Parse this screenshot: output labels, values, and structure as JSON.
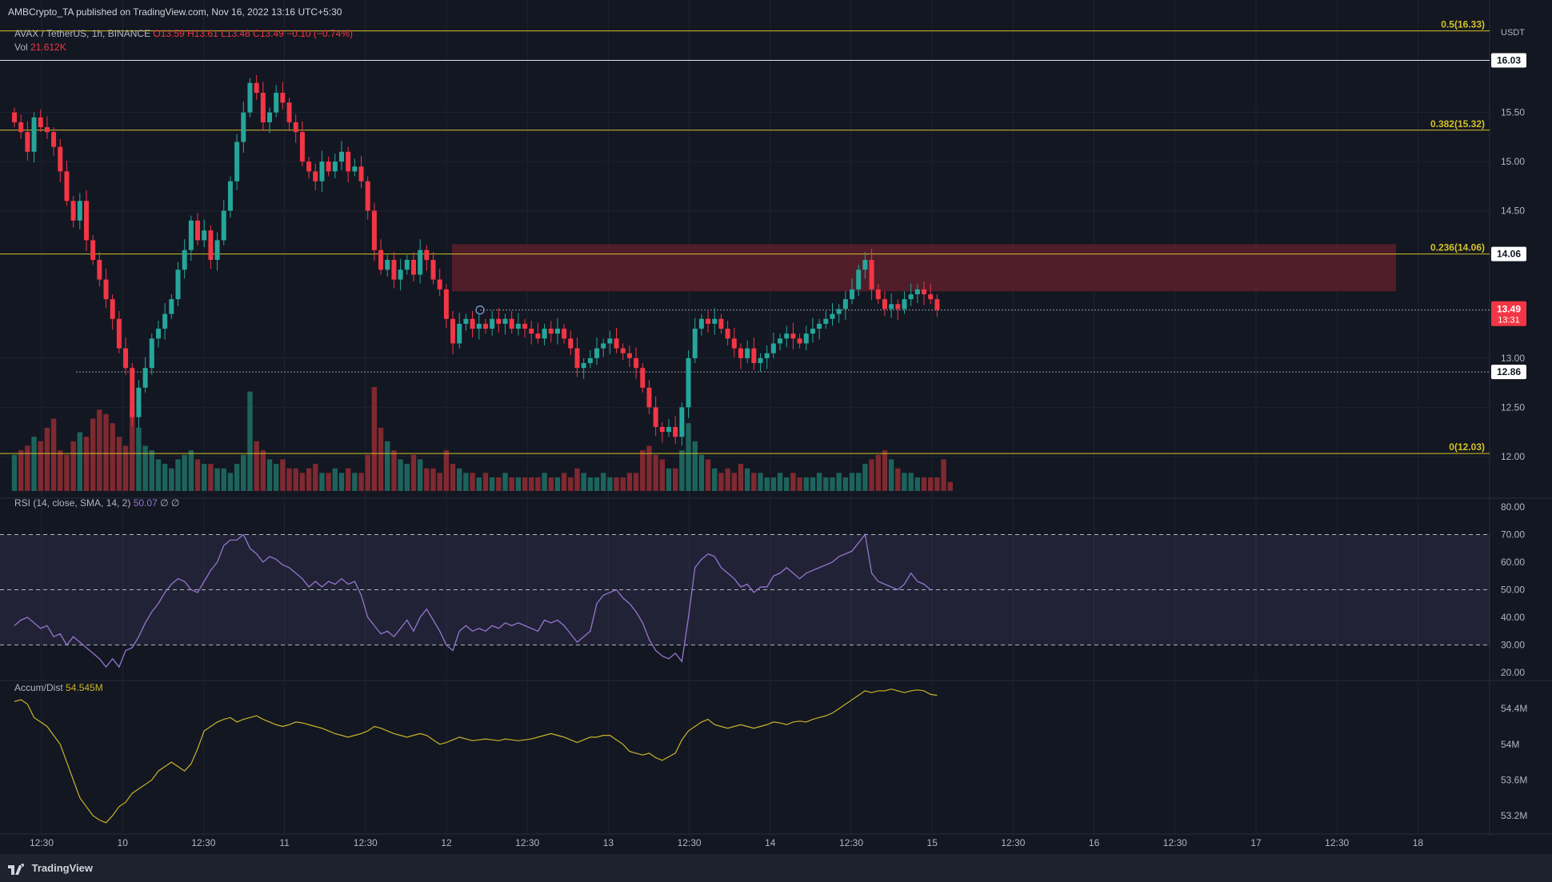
{
  "publisher": "AMBCrypto_TA published on TradingView.com, Nov 16, 2022 13:16 UTC+5:30",
  "symbol": {
    "name": "AVAX / TetherUS, 1h, BINANCE",
    "ohlc": "O13.59 H13.61 L13.48 C13.49 −0.10 (−0.74%)"
  },
  "volume": {
    "label": "Vol",
    "value": "21.612K"
  },
  "rsi": {
    "label": "RSI (14, close, SMA, 14, 2)",
    "value": "50.07",
    "extra": "∅ ∅"
  },
  "accum_dist": {
    "label": "Accum/Dist",
    "value": "54.545M"
  },
  "footer": {
    "brand": "TradingView"
  },
  "colors": {
    "background": "#131722",
    "up": "#26a69a",
    "down": "#f23645",
    "fib": "#d4c22a",
    "resistance_zone": "#5c1e2a",
    "rsi": "#9575cd",
    "ad": "#c9b32a"
  },
  "chart_data": [
    {
      "type": "candlestick",
      "title": "AVAX / TetherUS, 1h, BINANCE",
      "currency": "USDT",
      "y_ticks": [
        "15.50",
        "15.00",
        "14.50",
        "13.00",
        "12.50",
        "12.00"
      ],
      "ylim": [
        11.6,
        16.4
      ],
      "x_ticks": [
        "12:30",
        "10",
        "12:30",
        "11",
        "12:30",
        "12",
        "12:30",
        "13",
        "12:30",
        "14",
        "12:30",
        "15",
        "12:30",
        "16",
        "12:30",
        "17",
        "12:30",
        "18"
      ],
      "price_labels": [
        {
          "value": "16.03",
          "style": "white"
        },
        {
          "value": "14.06",
          "style": "white"
        },
        {
          "value": "13.49",
          "sub": "13:31",
          "style": "red"
        },
        {
          "value": "12.86",
          "style": "white"
        }
      ],
      "fib_levels": [
        {
          "label": "0.5(16.33)",
          "price": 16.33
        },
        {
          "label": "0.382(15.32)",
          "price": 15.32
        },
        {
          "label": "0.236(14.06)",
          "price": 14.06
        },
        {
          "label": "0(12.03)",
          "price": 12.03
        }
      ],
      "horizontal_lines": [
        16.03,
        13.49,
        12.86
      ],
      "resistance_zone": [
        13.68,
        14.16
      ],
      "closes": [
        15.4,
        15.3,
        15.1,
        15.45,
        15.35,
        15.3,
        15.15,
        14.9,
        14.6,
        14.4,
        14.6,
        14.2,
        14.0,
        13.8,
        13.6,
        13.4,
        13.1,
        12.9,
        12.4,
        12.7,
        12.9,
        13.2,
        13.3,
        13.45,
        13.6,
        13.9,
        14.1,
        14.4,
        14.2,
        14.3,
        14.0,
        14.2,
        14.5,
        14.8,
        15.2,
        15.5,
        15.8,
        15.7,
        15.4,
        15.5,
        15.7,
        15.6,
        15.4,
        15.3,
        15.0,
        14.9,
        14.8,
        15.0,
        14.9,
        15.0,
        15.1,
        14.9,
        14.95,
        14.8,
        14.5,
        14.1,
        13.9,
        14.0,
        13.8,
        13.9,
        14.0,
        13.85,
        14.1,
        14.0,
        13.8,
        13.7,
        13.4,
        13.15,
        13.35,
        13.4,
        13.3,
        13.35,
        13.3,
        13.4,
        13.35,
        13.4,
        13.3,
        13.35,
        13.3,
        13.25,
        13.2,
        13.3,
        13.25,
        13.3,
        13.2,
        13.1,
        12.9,
        12.95,
        13.0,
        13.1,
        13.15,
        13.2,
        13.1,
        13.05,
        13.0,
        12.9,
        12.7,
        12.5,
        12.3,
        12.25,
        12.3,
        12.2,
        12.5,
        13.0,
        13.3,
        13.4,
        13.35,
        13.4,
        13.3,
        13.2,
        13.1,
        13.0,
        13.1,
        12.95,
        13.0,
        13.05,
        13.15,
        13.2,
        13.25,
        13.2,
        13.15,
        13.25,
        13.3,
        13.35,
        13.4,
        13.45,
        13.5,
        13.6,
        13.7,
        13.9,
        14.0,
        13.7,
        13.6,
        13.5,
        13.55,
        13.5,
        13.6,
        13.65,
        13.7,
        13.65,
        13.6,
        13.49
      ]
    },
    {
      "type": "bar",
      "title": "Vol",
      "values": [
        8,
        9,
        10,
        12,
        11,
        14,
        16,
        9,
        8,
        11,
        13,
        12,
        16,
        18,
        17,
        15,
        12,
        10,
        18,
        14,
        10,
        9,
        7,
        6,
        5,
        7,
        8,
        9,
        7,
        6,
        6,
        5,
        5,
        4,
        6,
        8,
        22,
        11,
        9,
        7,
        6,
        7,
        5,
        5,
        4,
        5,
        6,
        4,
        4,
        5,
        4,
        5,
        4,
        4,
        8,
        23,
        14,
        11,
        9,
        7,
        6,
        8,
        7,
        5,
        5,
        4,
        9,
        6,
        5,
        4,
        4,
        3,
        4,
        3,
        3,
        4,
        3,
        3,
        3,
        3,
        3,
        4,
        3,
        3,
        4,
        3,
        5,
        4,
        3,
        3,
        4,
        3,
        3,
        3,
        4,
        4,
        9,
        10,
        8,
        7,
        5,
        5,
        9,
        15,
        11,
        8,
        7,
        5,
        4,
        5,
        4,
        6,
        5,
        4,
        4,
        3,
        3,
        4,
        3,
        4,
        3,
        3,
        3,
        4,
        3,
        3,
        4,
        3,
        4,
        4,
        6,
        7,
        8,
        9,
        7,
        5,
        4,
        4,
        3,
        3,
        3,
        3,
        7,
        2
      ]
    },
    {
      "type": "line",
      "title": "RSI (14, close, SMA, 14, 2)",
      "y_ticks": [
        "80.00",
        "70.00",
        "60.00",
        "50.00",
        "40.00",
        "30.00",
        "20.00"
      ],
      "ylim": [
        18,
        82
      ],
      "bands": {
        "upper": 70,
        "middle": 50,
        "lower": 30
      },
      "values": [
        37,
        39,
        40,
        38,
        36,
        37,
        33,
        34,
        30,
        33,
        31,
        29,
        27,
        25,
        22,
        25,
        22,
        28,
        29,
        33,
        38,
        42,
        45,
        49,
        52,
        54,
        53,
        50,
        49,
        53,
        57,
        60,
        66,
        68,
        68,
        70,
        65,
        63,
        60,
        62,
        61,
        59,
        58,
        56,
        54,
        51,
        53,
        51,
        53,
        52,
        54,
        52,
        53,
        48,
        40,
        37,
        34,
        35,
        33,
        36,
        39,
        35,
        40,
        43,
        39,
        35,
        30,
        28,
        35,
        37,
        35,
        36,
        35,
        37,
        36,
        38,
        37,
        38,
        37,
        36,
        35,
        39,
        38,
        39,
        37,
        34,
        31,
        33,
        35,
        45,
        48,
        49,
        50,
        47,
        45,
        42,
        38,
        32,
        28,
        26,
        25,
        27,
        24,
        40,
        58,
        61,
        63,
        62,
        58,
        56,
        54,
        51,
        52,
        49,
        51,
        51,
        55,
        56,
        58,
        56,
        54,
        56,
        57,
        58,
        59,
        60,
        62,
        63,
        64,
        67,
        70,
        56,
        53,
        52,
        51,
        50,
        52,
        56,
        53,
        52,
        50
      ]
    },
    {
      "type": "line",
      "title": "Accum/Dist",
      "y_ticks": [
        "54.4M",
        "54M",
        "53.6M",
        "53.2M"
      ],
      "ylim": [
        53.02,
        54.68
      ],
      "values": [
        54.48,
        54.5,
        54.45,
        54.3,
        54.25,
        54.2,
        54.1,
        54.0,
        53.8,
        53.6,
        53.4,
        53.3,
        53.2,
        53.15,
        53.12,
        53.2,
        53.3,
        53.35,
        53.45,
        53.5,
        53.55,
        53.6,
        53.7,
        53.75,
        53.8,
        53.75,
        53.7,
        53.78,
        53.95,
        54.15,
        54.2,
        54.25,
        54.28,
        54.3,
        54.25,
        54.28,
        54.3,
        54.32,
        54.28,
        54.25,
        54.22,
        54.2,
        54.22,
        54.25,
        54.24,
        54.22,
        54.2,
        54.18,
        54.15,
        54.12,
        54.1,
        54.08,
        54.1,
        54.12,
        54.15,
        54.2,
        54.18,
        54.15,
        54.12,
        54.1,
        54.08,
        54.1,
        54.12,
        54.1,
        54.05,
        54.0,
        54.02,
        54.05,
        54.08,
        54.06,
        54.04,
        54.05,
        54.06,
        54.05,
        54.04,
        54.06,
        54.05,
        54.04,
        54.05,
        54.06,
        54.08,
        54.1,
        54.12,
        54.1,
        54.08,
        54.05,
        54.02,
        54.05,
        54.08,
        54.08,
        54.1,
        54.1,
        54.05,
        54.0,
        53.92,
        53.9,
        53.88,
        53.9,
        53.85,
        53.82,
        53.86,
        53.9,
        54.05,
        54.15,
        54.2,
        54.25,
        54.28,
        54.22,
        54.2,
        54.18,
        54.2,
        54.22,
        54.2,
        54.18,
        54.2,
        54.22,
        54.25,
        54.24,
        54.22,
        54.25,
        54.26,
        54.25,
        54.28,
        54.3,
        54.32,
        54.35,
        54.4,
        54.45,
        54.5,
        54.55,
        54.6,
        54.58,
        54.6,
        54.6,
        54.62,
        54.6,
        54.58,
        54.6,
        54.61,
        54.6,
        54.56,
        54.55
      ]
    }
  ]
}
